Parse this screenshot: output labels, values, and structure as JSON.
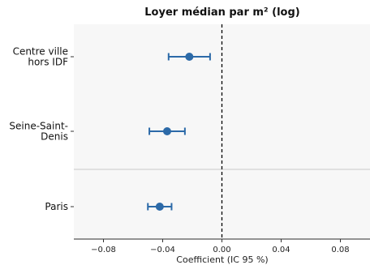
{
  "chart_data": {
    "type": "scatter",
    "title": "Loyer médian par m² (log)",
    "xlabel": "Coefficient (IC 95 %)",
    "ylabel": "",
    "xlim": [
      -0.1,
      0.1
    ],
    "xticks": [
      -0.08,
      -0.04,
      0.0,
      0.04,
      0.08
    ],
    "xtick_labels": [
      "−0.08",
      "−0.04",
      "0.00",
      "0.04",
      "0.08"
    ],
    "reference_line": {
      "x": 0,
      "style": "dashed"
    },
    "grid": false,
    "categories": [
      {
        "label": [
          "Centre ville",
          "hors IDF"
        ],
        "estimate": -0.022,
        "ci": [
          -0.036,
          -0.008
        ]
      },
      {
        "label": [
          "Seine-Saint-",
          "Denis"
        ],
        "estimate": -0.037,
        "ci": [
          -0.049,
          -0.025
        ]
      },
      {
        "label": [
          "Paris"
        ],
        "estimate": -0.042,
        "ci": [
          -0.05,
          -0.034
        ]
      }
    ],
    "colors": {
      "point": "#2c6aa8",
      "errorbar": "#2c6aa8",
      "plot_bg": "#f7f7f7",
      "separator": "#d9d9d9"
    }
  }
}
